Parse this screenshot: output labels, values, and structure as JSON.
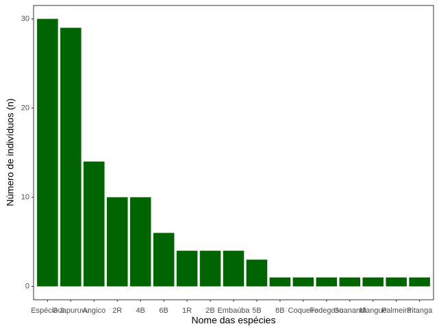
{
  "chart_data": {
    "type": "bar",
    "x_label": "Nome das espécies",
    "y_label": "Número de indivíduos (n)",
    "categories": [
      "Espécie 3",
      "Guapuruvu",
      "Angico",
      "2R",
      "4B",
      "6B",
      "1R",
      "2B",
      "Embaúba",
      "5B",
      "8B",
      "Coqueiro",
      "Fedegoso",
      "Guanandi",
      "Mangue",
      "Palmeira",
      "Pitanga"
    ],
    "values": [
      30,
      29,
      14,
      10,
      10,
      6,
      4,
      4,
      4,
      3,
      1,
      1,
      1,
      1,
      1,
      1,
      1
    ],
    "color": "#006400",
    "ylim": [
      -1.5,
      31.5
    ],
    "yticks": [
      0,
      10,
      20,
      30
    ],
    "grid": false
  }
}
